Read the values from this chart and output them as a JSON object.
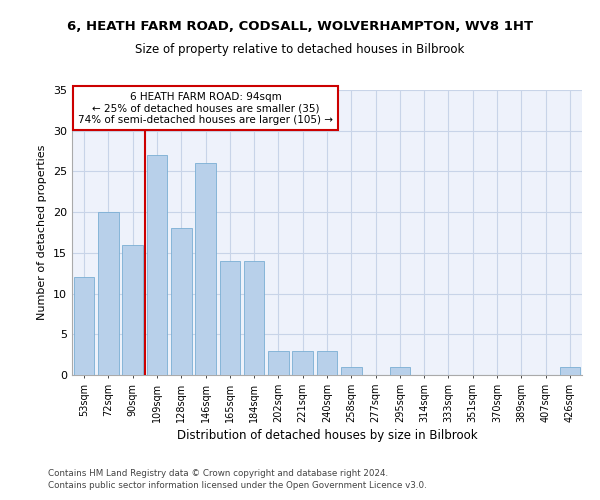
{
  "title_line1": "6, HEATH FARM ROAD, CODSALL, WOLVERHAMPTON, WV8 1HT",
  "title_line2": "Size of property relative to detached houses in Bilbrook",
  "xlabel": "Distribution of detached houses by size in Bilbrook",
  "ylabel": "Number of detached properties",
  "categories": [
    "53sqm",
    "72sqm",
    "90sqm",
    "109sqm",
    "128sqm",
    "146sqm",
    "165sqm",
    "184sqm",
    "202sqm",
    "221sqm",
    "240sqm",
    "258sqm",
    "277sqm",
    "295sqm",
    "314sqm",
    "333sqm",
    "351sqm",
    "370sqm",
    "389sqm",
    "407sqm",
    "426sqm"
  ],
  "values": [
    12,
    20,
    16,
    27,
    18,
    26,
    14,
    14,
    3,
    3,
    3,
    1,
    0,
    1,
    0,
    0,
    0,
    0,
    0,
    0,
    1
  ],
  "bar_color": "#b8d0ea",
  "bar_edge_color": "#7aaed4",
  "red_line_x": 2.5,
  "annotation_text_line1": "6 HEATH FARM ROAD: 94sqm",
  "annotation_text_line2": "← 25% of detached houses are smaller (35)",
  "annotation_text_line3": "74% of semi-detached houses are larger (105) →",
  "red_line_color": "#cc0000",
  "ylim": [
    0,
    35
  ],
  "yticks": [
    0,
    5,
    10,
    15,
    20,
    25,
    30,
    35
  ],
  "footer_line1": "Contains HM Land Registry data © Crown copyright and database right 2024.",
  "footer_line2": "Contains public sector information licensed under the Open Government Licence v3.0.",
  "bg_color": "#eef2fb",
  "grid_color": "#c8d4e8",
  "figsize": [
    6.0,
    5.0
  ],
  "dpi": 100
}
